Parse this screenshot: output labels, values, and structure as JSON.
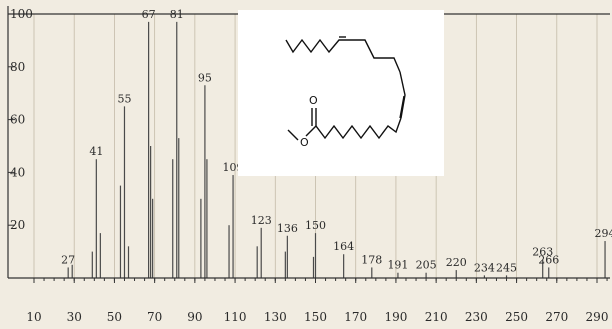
{
  "chart_data": {
    "type": "bar",
    "title": "",
    "xlabel": "",
    "ylabel": "",
    "xlim": [
      10,
      300
    ],
    "ylim": [
      0,
      100
    ],
    "x_ticks": [
      10,
      30,
      50,
      70,
      90,
      110,
      130,
      150,
      170,
      190,
      210,
      230,
      250,
      270,
      290
    ],
    "y_ticks": [
      20,
      40,
      60,
      80,
      100
    ],
    "grid": true,
    "series": [
      {
        "x": [
          27,
          29,
          39,
          41,
          43,
          53,
          55,
          57,
          67,
          68,
          69,
          79,
          81,
          82,
          93,
          95,
          96,
          107,
          109,
          121,
          123,
          135,
          136,
          149,
          150,
          164,
          178,
          191,
          205,
          220,
          234,
          245,
          263,
          266,
          294
        ],
        "values": [
          4,
          5,
          10,
          45,
          17,
          35,
          65,
          12,
          97,
          50,
          30,
          45,
          97,
          53,
          30,
          73,
          45,
          20,
          39,
          12,
          19,
          10,
          16,
          8,
          17,
          9,
          4,
          2,
          2,
          3,
          1,
          1,
          7,
          4,
          14
        ]
      }
    ],
    "peak_labels": [
      {
        "x": 27,
        "text": "27"
      },
      {
        "x": 41,
        "text": "41"
      },
      {
        "x": 55,
        "text": "55"
      },
      {
        "x": 67,
        "text": "67"
      },
      {
        "x": 81,
        "text": "81"
      },
      {
        "x": 95,
        "text": "95"
      },
      {
        "x": 109,
        "text": "109"
      },
      {
        "x": 123,
        "text": "123"
      },
      {
        "x": 136,
        "text": "136"
      },
      {
        "x": 150,
        "text": "150"
      },
      {
        "x": 164,
        "text": "164"
      },
      {
        "x": 178,
        "text": "178"
      },
      {
        "x": 191,
        "text": "191"
      },
      {
        "x": 205,
        "text": "205"
      },
      {
        "x": 220,
        "text": "220"
      },
      {
        "x": 234,
        "text": "234"
      },
      {
        "x": 245,
        "text": "245"
      },
      {
        "x": 263,
        "text": "263"
      },
      {
        "x": 266,
        "text": "266"
      },
      {
        "x": 294,
        "text": "294"
      }
    ]
  },
  "structure": {
    "carbonyl_atom": "O",
    "ester_atom": "O"
  },
  "colors": {
    "background": "#f1ece1",
    "bars": "#4a4a4a",
    "grid": "#c4bba8",
    "inset": "#ffffff"
  }
}
